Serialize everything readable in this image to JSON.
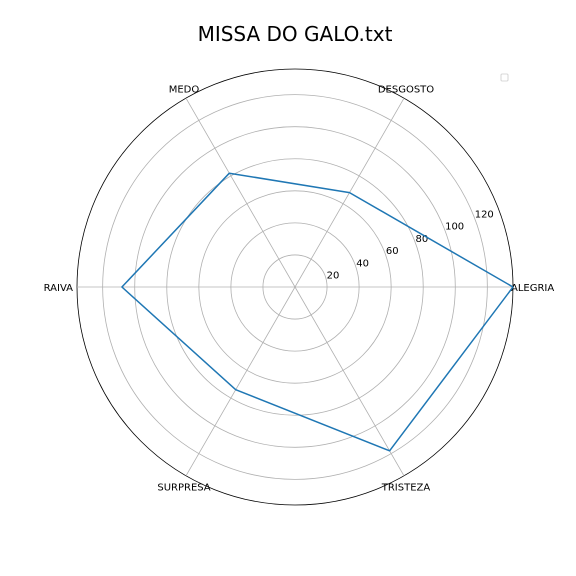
{
  "chart_data": {
    "type": "radar",
    "title": "MISSA DO GALO.txt",
    "categories": [
      "ALEGRIA",
      "DESGOSTO",
      "MEDO",
      "RAIVA",
      "SURPRESA",
      "TRISTEZA"
    ],
    "series": [
      {
        "values": [
          136,
          68,
          82,
          108,
          74,
          118
        ]
      }
    ],
    "rlim": [
      0,
      136
    ],
    "r_ticks": [
      20,
      40,
      60,
      80,
      100,
      120
    ],
    "grid": true,
    "legend": {
      "placement": "top-right",
      "entries": []
    },
    "colors": {
      "series": "#1f77b4",
      "grid": "#b0b0b0",
      "frame": "#000000"
    }
  }
}
